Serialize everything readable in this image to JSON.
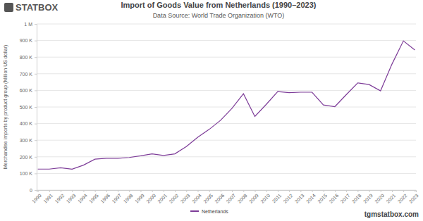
{
  "chart_data": {
    "type": "line",
    "title": "Import of Goods Value from Netherlands (1990–2023)",
    "subtitle": "Data Source: World Trade Organization (WTO)",
    "y_label": "Merchandise imports by product group (Million US dollar)",
    "annotations": [
      "STATBOX",
      "tgmstatbox.com"
    ],
    "categories": [
      "1990",
      "1991",
      "1992",
      "1993",
      "1994",
      "1995",
      "1996",
      "1997",
      "1998",
      "1999",
      "2000",
      "2001",
      "2002",
      "2003",
      "2004",
      "2005",
      "2006",
      "2007",
      "2008",
      "2009",
      "2010",
      "2011",
      "2012",
      "2013",
      "2014",
      "2015",
      "2016",
      "2017",
      "2018",
      "2019",
      "2020",
      "2021",
      "2022",
      "2023"
    ],
    "series": [
      {
        "name": "Netherlands",
        "color": "#7d3c98",
        "values": [
          126000,
          126000,
          134000,
          126000,
          150000,
          186000,
          191000,
          191000,
          196000,
          206000,
          218000,
          208000,
          218000,
          262000,
          318000,
          365000,
          420000,
          492000,
          580000,
          443000,
          516000,
          593000,
          586000,
          589000,
          589000,
          512000,
          502000,
          574000,
          645000,
          635000,
          597000,
          758000,
          898000,
          843000
        ]
      }
    ],
    "ylim": [
      0,
      1000000
    ],
    "yticks": [
      0,
      {
        "value": 100000,
        "label": "100 K"
      },
      {
        "value": 200000,
        "label": "200 K"
      },
      {
        "value": 300000,
        "label": "300 K"
      },
      {
        "value": 400000,
        "label": "400 K"
      },
      {
        "value": 500000,
        "label": "500 K"
      },
      {
        "value": 600000,
        "label": "600 K"
      },
      {
        "value": 700000,
        "label": "700 K"
      },
      {
        "value": 800000,
        "label": "800 K"
      },
      {
        "value": 900000,
        "label": "900 K"
      },
      {
        "value": 1000000,
        "label": "1 M"
      }
    ],
    "grid": true,
    "legend": "bottom"
  }
}
